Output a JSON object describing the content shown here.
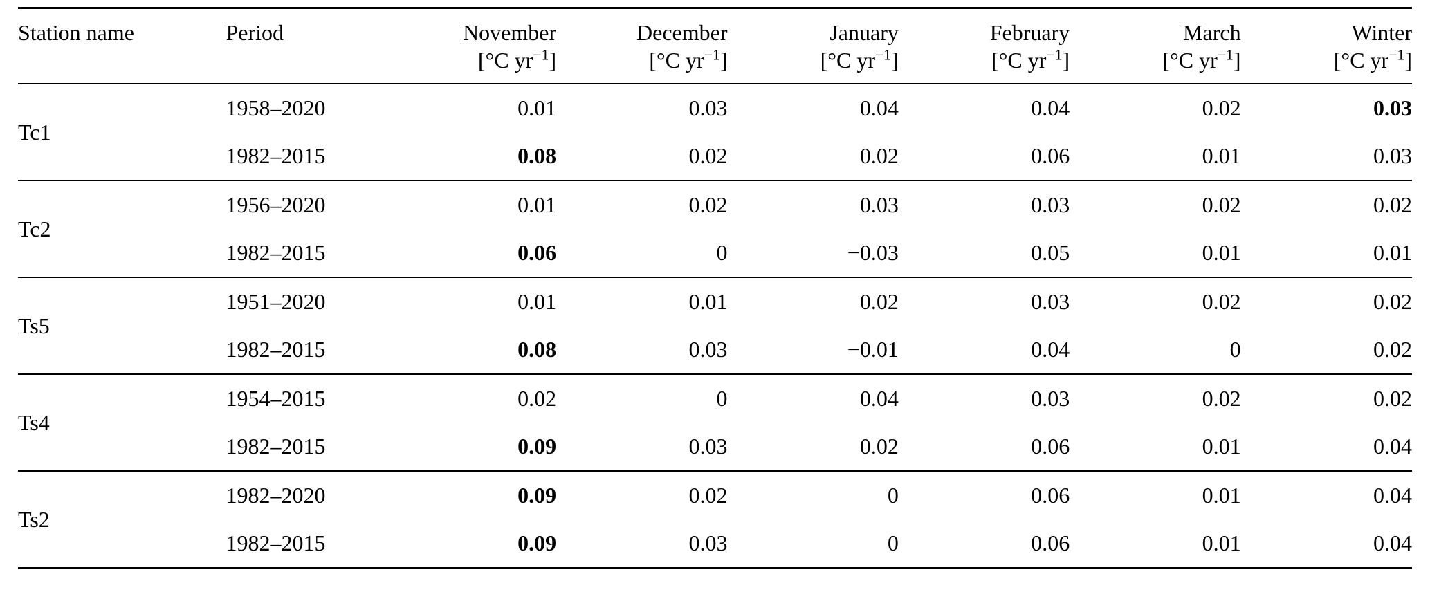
{
  "table": {
    "headers": {
      "station": "Station name",
      "period": "Period",
      "months": [
        {
          "label": "November"
        },
        {
          "label": "December"
        },
        {
          "label": "January"
        },
        {
          "label": "February"
        },
        {
          "label": "March"
        },
        {
          "label": "Winter"
        }
      ],
      "unit_pre": "[°C yr",
      "unit_sup": "−1",
      "unit_post": "]"
    },
    "groups": [
      {
        "station": "Tc1",
        "rows": [
          {
            "period": "1958–2020",
            "values": [
              "0.01",
              "0.03",
              "0.04",
              "0.04",
              "0.02",
              "0.03"
            ],
            "bold": [
              0,
              0,
              0,
              0,
              0,
              1
            ]
          },
          {
            "period": "1982–2015",
            "values": [
              "0.08",
              "0.02",
              "0.02",
              "0.06",
              "0.01",
              "0.03"
            ],
            "bold": [
              1,
              0,
              0,
              0,
              0,
              0
            ]
          }
        ]
      },
      {
        "station": "Tc2",
        "rows": [
          {
            "period": "1956–2020",
            "values": [
              "0.01",
              "0.02",
              "0.03",
              "0.03",
              "0.02",
              "0.02"
            ],
            "bold": [
              0,
              0,
              0,
              0,
              0,
              0
            ]
          },
          {
            "period": "1982–2015",
            "values": [
              "0.06",
              "0",
              "−0.03",
              "0.05",
              "0.01",
              "0.01"
            ],
            "bold": [
              1,
              0,
              0,
              0,
              0,
              0
            ]
          }
        ]
      },
      {
        "station": "Ts5",
        "rows": [
          {
            "period": "1951–2020",
            "values": [
              "0.01",
              "0.01",
              "0.02",
              "0.03",
              "0.02",
              "0.02"
            ],
            "bold": [
              0,
              0,
              0,
              0,
              0,
              0
            ]
          },
          {
            "period": "1982–2015",
            "values": [
              "0.08",
              "0.03",
              "−0.01",
              "0.04",
              "0",
              "0.02"
            ],
            "bold": [
              1,
              0,
              0,
              0,
              0,
              0
            ]
          }
        ]
      },
      {
        "station": "Ts4",
        "rows": [
          {
            "period": "1954–2015",
            "values": [
              "0.02",
              "0",
              "0.04",
              "0.03",
              "0.02",
              "0.02"
            ],
            "bold": [
              0,
              0,
              0,
              0,
              0,
              0
            ]
          },
          {
            "period": "1982–2015",
            "values": [
              "0.09",
              "0.03",
              "0.02",
              "0.06",
              "0.01",
              "0.04"
            ],
            "bold": [
              1,
              0,
              0,
              0,
              0,
              0
            ]
          }
        ]
      },
      {
        "station": "Ts2",
        "rows": [
          {
            "period": "1982–2020",
            "values": [
              "0.09",
              "0.02",
              "0",
              "0.06",
              "0.01",
              "0.04"
            ],
            "bold": [
              1,
              0,
              0,
              0,
              0,
              0
            ]
          },
          {
            "period": "1982–2015",
            "values": [
              "0.09",
              "0.03",
              "0",
              "0.06",
              "0.01",
              "0.04"
            ],
            "bold": [
              1,
              0,
              0,
              0,
              0,
              0
            ]
          }
        ]
      }
    ]
  }
}
